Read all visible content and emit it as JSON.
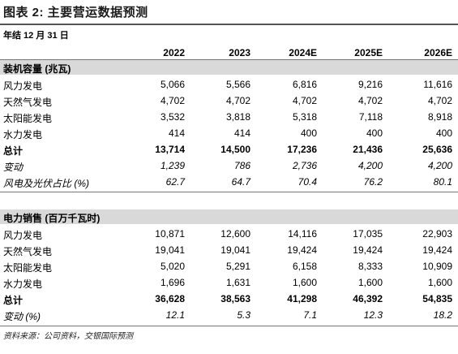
{
  "title": "图表 2: 主要营运数据预测",
  "subtitle": "年结 12 月 31 日",
  "columns": [
    "2022",
    "2023",
    "2024E",
    "2025E",
    "2026E"
  ],
  "sections": [
    {
      "header": "装机容量 (兆瓦)",
      "rows": [
        {
          "label": "风力发电",
          "values": [
            "5,066",
            "5,566",
            "6,816",
            "9,216",
            "11,616"
          ],
          "style": "normal"
        },
        {
          "label": "天然气发电",
          "values": [
            "4,702",
            "4,702",
            "4,702",
            "4,702",
            "4,702"
          ],
          "style": "normal"
        },
        {
          "label": "太阳能发电",
          "values": [
            "3,532",
            "3,818",
            "5,318",
            "7,118",
            "8,918"
          ],
          "style": "normal"
        },
        {
          "label": "水力发电",
          "values": [
            "414",
            "414",
            "400",
            "400",
            "400"
          ],
          "style": "normal"
        },
        {
          "label": "总计",
          "values": [
            "13,714",
            "14,500",
            "17,236",
            "21,436",
            "25,636"
          ],
          "style": "bold"
        },
        {
          "label": "变动",
          "values": [
            "1,239",
            "786",
            "2,736",
            "4,200",
            "4,200"
          ],
          "style": "ital"
        },
        {
          "label": "风电及光伏占比 (%)",
          "values": [
            "62.7",
            "64.7",
            "70.4",
            "76.2",
            "80.1"
          ],
          "style": "ital"
        }
      ]
    },
    {
      "header": "电力销售 (百万千瓦时)",
      "rows": [
        {
          "label": "风力发电",
          "values": [
            "10,871",
            "12,600",
            "14,116",
            "17,035",
            "22,903"
          ],
          "style": "normal"
        },
        {
          "label": "天然气发电",
          "values": [
            "19,041",
            "19,041",
            "19,424",
            "19,424",
            "19,424"
          ],
          "style": "normal"
        },
        {
          "label": "太阳能发电",
          "values": [
            "5,020",
            "5,291",
            "6,158",
            "8,333",
            "10,909"
          ],
          "style": "normal"
        },
        {
          "label": "水力发电",
          "values": [
            "1,696",
            "1,631",
            "1,600",
            "1,600",
            "1,600"
          ],
          "style": "normal"
        },
        {
          "label": "总计",
          "values": [
            "36,628",
            "38,563",
            "41,298",
            "46,392",
            "54,835"
          ],
          "style": "bold"
        },
        {
          "label": "变动 (%)",
          "values": [
            "12.1",
            "5.3",
            "7.1",
            "12.3",
            "18.2"
          ],
          "style": "ital"
        }
      ]
    }
  ],
  "source": "资料来源：公司资料，交银国际预测"
}
